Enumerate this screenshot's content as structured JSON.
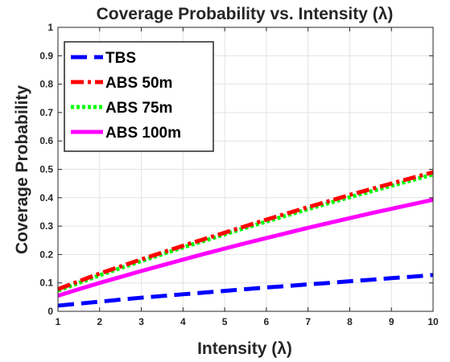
{
  "chart_data": {
    "type": "line",
    "title": "Coverage Probability vs. Intensity (λ)",
    "xlabel": "Intensity (λ)",
    "ylabel": "Coverage Probability",
    "xlim": [
      1,
      10
    ],
    "ylim": [
      0,
      1
    ],
    "xticks": [
      1,
      2,
      3,
      4,
      5,
      6,
      7,
      8,
      9,
      10
    ],
    "yticks": [
      0,
      0.1,
      0.2,
      0.3,
      0.4,
      0.5,
      0.6,
      0.7,
      0.8,
      0.9,
      1
    ],
    "grid": true,
    "legend_position": "top-left",
    "x": [
      1,
      1.5,
      2,
      2.5,
      3,
      3.5,
      4,
      4.5,
      5,
      5.5,
      6,
      6.5,
      7,
      7.5,
      8,
      8.5,
      9,
      9.5,
      10
    ],
    "series": [
      {
        "name": "TBS",
        "color": "#0000ff",
        "style": "dashed",
        "values": [
          0.02,
          0.027,
          0.034,
          0.041,
          0.048,
          0.054,
          0.06,
          0.066,
          0.072,
          0.078,
          0.084,
          0.089,
          0.095,
          0.1,
          0.106,
          0.111,
          0.117,
          0.122,
          0.128
        ]
      },
      {
        "name": "ABS 50m",
        "color": "#ff0000",
        "style": "dash-dot",
        "values": [
          0.078,
          0.106,
          0.133,
          0.158,
          0.183,
          0.207,
          0.231,
          0.254,
          0.277,
          0.3,
          0.323,
          0.345,
          0.367,
          0.388,
          0.41,
          0.43,
          0.45,
          0.47,
          0.49
        ]
      },
      {
        "name": "ABS 75m",
        "color": "#00ff00",
        "style": "dotted",
        "values": [
          0.073,
          0.1,
          0.127,
          0.152,
          0.177,
          0.201,
          0.225,
          0.248,
          0.271,
          0.294,
          0.316,
          0.338,
          0.36,
          0.381,
          0.402,
          0.422,
          0.442,
          0.462,
          0.482
        ]
      },
      {
        "name": "ABS 100m",
        "color": "#ff00ff",
        "style": "solid",
        "values": [
          0.055,
          0.078,
          0.1,
          0.121,
          0.142,
          0.162,
          0.182,
          0.202,
          0.221,
          0.24,
          0.258,
          0.276,
          0.294,
          0.311,
          0.328,
          0.345,
          0.361,
          0.377,
          0.393
        ]
      }
    ]
  }
}
